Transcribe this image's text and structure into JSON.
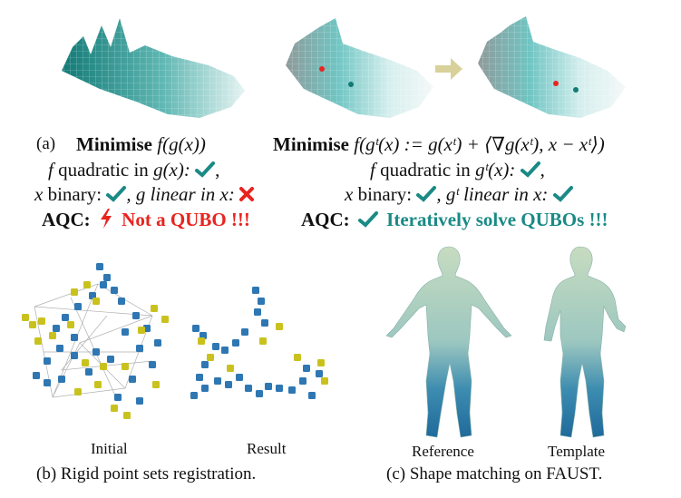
{
  "panel_a": {
    "tag": "(a)",
    "left": {
      "title_word": "Minimise",
      "title_math": "f(g(x))",
      "line2_pre": "f",
      "line2_mid": "quadratic in",
      "line2_math": "g(x):",
      "line3_a": "x",
      "line3_b": "binary:",
      "line3_c": ", g linear in x:",
      "aqc_label": "AQC:",
      "aqc_text": "Not a QUBO",
      "aqc_marks": "!!!"
    },
    "right": {
      "title_word": "Minimise",
      "title_math": "f(gᵗ(x) := g(xᵗ) + ⟨∇g(xᵗ), x − xᵗ⟩)",
      "line2_pre": "f",
      "line2_mid": "quadratic in",
      "line2_math": "gᵗ(x):",
      "line3_a": "x",
      "line3_b": "binary:",
      "line3_c": ", gᵗ linear in x:",
      "aqc_label": "AQC:",
      "aqc_text": "Iteratively solve QUBOs",
      "aqc_marks": "!!!"
    },
    "check_icon": "check-icon",
    "cross_icon": "cross-icon",
    "lightning_icon": "lightning-icon",
    "arrow_icon": "arrow-right-icon"
  },
  "panel_b": {
    "label_initial": "Initial",
    "label_result": "Result",
    "caption": "(b) Rigid point sets registration."
  },
  "panel_c": {
    "label_reference": "Reference",
    "label_template": "Template",
    "caption": "(c) Shape matching on FAUST."
  },
  "colors": {
    "teal": "#1a8a86",
    "red": "#e8241f",
    "point_blue": "#2e77b3",
    "point_yellow": "#c9c21e",
    "arrow": "#d8d29a"
  }
}
